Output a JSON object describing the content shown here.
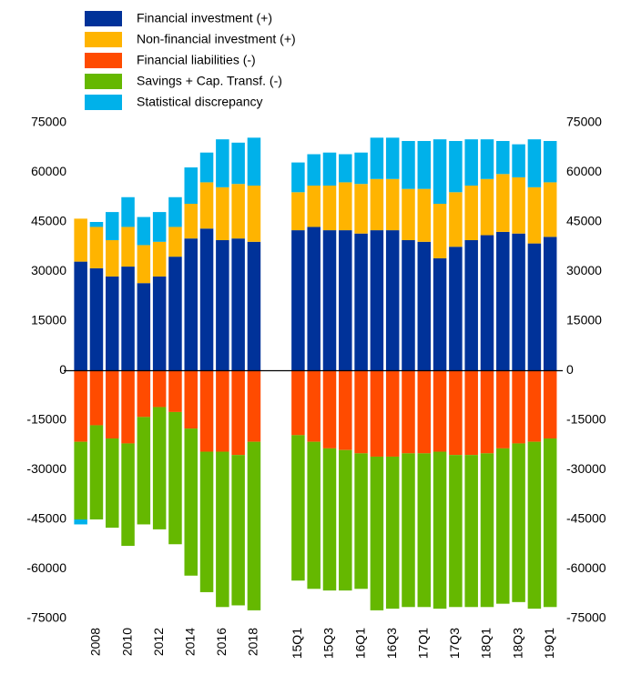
{
  "chart_data": {
    "type": "bar",
    "stacked": true,
    "categories": [
      null,
      "2008",
      null,
      "2010",
      null,
      "2012",
      null,
      "2014",
      null,
      "2016",
      null,
      "2018",
      "15Q1",
      null,
      "15Q3",
      null,
      "16Q1",
      null,
      "16Q3",
      null,
      "17Q1",
      null,
      "17Q3",
      null,
      "18Q1",
      null,
      "18Q3",
      null,
      "19Q1"
    ],
    "series": [
      {
        "name": "Financial investment (+)",
        "color": "#003299",
        "values": [
          33000,
          31000,
          28500,
          31500,
          26500,
          28500,
          34500,
          40000,
          43000,
          39500,
          40000,
          39000,
          42500,
          43500,
          42500,
          42500,
          41500,
          42500,
          42500,
          39500,
          39000,
          34000,
          37500,
          39500,
          41000,
          42000,
          41500,
          38500,
          40500
        ]
      },
      {
        "name": "Non-financial investment (+)",
        "color": "#ffb400",
        "values": [
          13000,
          12500,
          11000,
          12000,
          11500,
          10500,
          9000,
          10500,
          14000,
          16000,
          16500,
          17000,
          11500,
          12500,
          13500,
          14500,
          15000,
          15500,
          15500,
          15500,
          16000,
          16500,
          16500,
          16500,
          17000,
          17500,
          17000,
          17000,
          16500
        ]
      },
      {
        "name": "Financial liabilities (-)",
        "color": "#ff4b00",
        "values": [
          -21500,
          -16500,
          -20500,
          -22000,
          -14000,
          -11000,
          -12500,
          -17500,
          -24500,
          -24500,
          -25500,
          -21500,
          -19500,
          -21500,
          -23500,
          -24000,
          -25000,
          -26000,
          -26000,
          -25000,
          -25000,
          -24500,
          -25500,
          -25500,
          -25000,
          -23500,
          -22000,
          -21500,
          -20500
        ]
      },
      {
        "name": "Savings + Cap. Transf. (-)",
        "color": "#65b800",
        "values": [
          -23500,
          -28500,
          -27000,
          -31000,
          -32500,
          -37000,
          -40000,
          -44500,
          -42500,
          -47000,
          -45500,
          -51000,
          -44000,
          -44500,
          -43000,
          -42500,
          -41000,
          -46500,
          -46000,
          -46500,
          -46500,
          -47500,
          -46000,
          -46000,
          -46500,
          -47000,
          -48000,
          -50500,
          -51000
        ]
      },
      {
        "name": "Statistical discrepancy",
        "color": "#00b1ea",
        "values": [
          -1500,
          1500,
          8500,
          9000,
          8500,
          9000,
          9000,
          11000,
          9000,
          14500,
          12500,
          14500,
          9000,
          9500,
          10000,
          8500,
          9500,
          12500,
          12500,
          14500,
          14500,
          19500,
          15500,
          14000,
          12000,
          10000,
          10000,
          14500,
          12500
        ]
      }
    ],
    "ylim": [
      -75000,
      75000
    ],
    "yticks": [
      -75000,
      -60000,
      -45000,
      -30000,
      -15000,
      0,
      15000,
      30000,
      45000,
      60000,
      75000
    ],
    "y2lim": [
      -75000,
      75000
    ],
    "y2ticks": [
      -75000,
      -60000,
      -45000,
      -30000,
      -15000,
      0,
      15000,
      30000,
      45000,
      60000,
      75000
    ],
    "legend": "top-left"
  }
}
